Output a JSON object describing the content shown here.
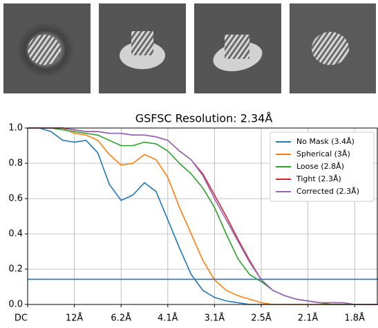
{
  "chart_data": {
    "type": "line",
    "title": "GSFSC Resolution: 2.34Å",
    "x": [
      0,
      0.02,
      0.04,
      0.06,
      0.08,
      0.1,
      0.12,
      0.14,
      0.16,
      0.18,
      0.2,
      0.22,
      0.24,
      0.26,
      0.28,
      0.3,
      0.32,
      0.34,
      0.36,
      0.38,
      0.4,
      0.42,
      0.44,
      0.46,
      0.48,
      0.5,
      0.52,
      0.54,
      0.56,
      0.58,
      0.6
    ],
    "series": [
      {
        "name": "No Mask (3.4Å)",
        "color": "#1f77b4",
        "values": [
          1,
          1,
          0.98,
          0.93,
          0.92,
          0.93,
          0.86,
          0.68,
          0.59,
          0.62,
          0.69,
          0.64,
          0.48,
          0.32,
          0.17,
          0.08,
          0.04,
          0.02,
          0.01,
          0,
          0,
          0,
          0,
          0,
          0,
          0,
          0,
          0,
          0,
          0,
          0
        ]
      },
      {
        "name": "Spherical (3Å)",
        "color": "#ff7f0e",
        "values": [
          1,
          1,
          1,
          1,
          0.97,
          0.96,
          0.93,
          0.85,
          0.79,
          0.8,
          0.85,
          0.82,
          0.72,
          0.55,
          0.4,
          0.25,
          0.14,
          0.08,
          0.05,
          0.03,
          0.01,
          0,
          0,
          0,
          0,
          0,
          0,
          0,
          0,
          0,
          0
        ]
      },
      {
        "name": "Loose (2.8Å)",
        "color": "#2ca02c",
        "values": [
          1,
          1,
          1,
          0.99,
          0.98,
          0.97,
          0.96,
          0.93,
          0.9,
          0.9,
          0.92,
          0.91,
          0.87,
          0.8,
          0.74,
          0.66,
          0.55,
          0.4,
          0.26,
          0.17,
          0.13,
          0.08,
          0.05,
          0.03,
          0.02,
          0.01,
          0,
          0,
          0,
          0,
          0
        ]
      },
      {
        "name": "Tight (2.3Å)",
        "color": "#d62728",
        "values": [
          1,
          1,
          1,
          1,
          0.99,
          0.98,
          0.98,
          0.97,
          0.97,
          0.96,
          0.96,
          0.95,
          0.93,
          0.87,
          0.82,
          0.74,
          0.62,
          0.5,
          0.37,
          0.25,
          0.14,
          0.08,
          0.05,
          0.03,
          0.02,
          0.01,
          0.01,
          0.01,
          0,
          0,
          0
        ]
      },
      {
        "name": "Corrected (2.3Å)",
        "color": "#9467bd",
        "values": [
          1,
          1,
          1,
          1,
          0.99,
          0.98,
          0.98,
          0.97,
          0.97,
          0.96,
          0.96,
          0.95,
          0.93,
          0.87,
          0.82,
          0.73,
          0.6,
          0.48,
          0.36,
          0.24,
          0.14,
          0.08,
          0.05,
          0.03,
          0.02,
          0.01,
          0.01,
          0.01,
          0,
          0,
          0
        ]
      }
    ],
    "threshold": 0.143,
    "threshold_color": "#1f77b4",
    "xlim": [
      0,
      0.6
    ],
    "xticks": [
      {
        "value": 0,
        "label": "DC"
      },
      {
        "value": 0.08,
        "label": "12Å"
      },
      {
        "value": 0.16,
        "label": "6.2Å"
      },
      {
        "value": 0.24,
        "label": "4.1Å"
      },
      {
        "value": 0.32,
        "label": "3.1Å"
      },
      {
        "value": 0.4,
        "label": "2.5Å"
      },
      {
        "value": 0.48,
        "label": "2.1Å"
      },
      {
        "value": 0.56,
        "label": "1.8Å"
      }
    ],
    "ylim": [
      0,
      1
    ],
    "yticks": [
      {
        "value": 0,
        "label": "0.0"
      },
      0.2,
      0.4,
      0.6,
      0.8,
      {
        "value": 1,
        "label": "1.0"
      }
    ],
    "grid": true,
    "legend": "upper right"
  }
}
